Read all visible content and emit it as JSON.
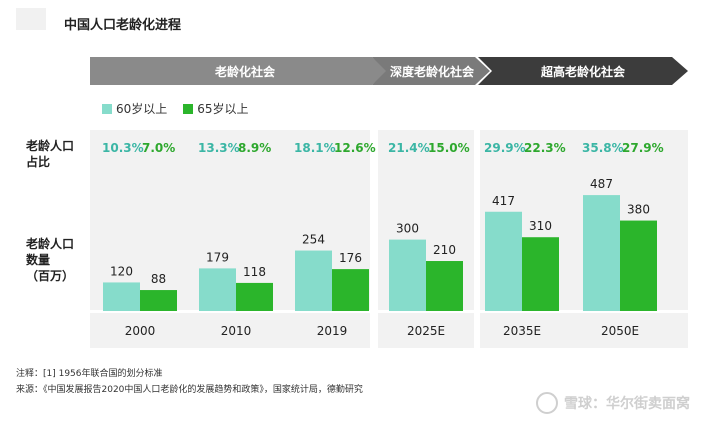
{
  "title": "中国人口老龄化进程",
  "phases": [
    "老龄化社会",
    "深度老龄化社会",
    "超高老龄化社会"
  ],
  "row_labels": {
    "share": "老龄人口\n占比",
    "count": "老龄人口\n数量\n（百万）"
  },
  "colors": {
    "aged60": "#86dccb",
    "aged65": "#2bb52b",
    "pct60": "#3bb6a5",
    "pct65": "#2ea82e"
  },
  "chart_data": {
    "type": "bar",
    "categories": [
      "2000",
      "2010",
      "2019",
      "2025E",
      "2035E",
      "2050E"
    ],
    "series": [
      {
        "name": "60岁以上",
        "values": [
          120,
          179,
          254,
          300,
          417,
          487
        ],
        "share": [
          "10.3%",
          "13.3%",
          "18.1%",
          "21.4%",
          "29.9%",
          "35.8%"
        ]
      },
      {
        "name": "65岁以上",
        "values": [
          88,
          118,
          176,
          210,
          310,
          380
        ],
        "share": [
          "7.0%",
          "8.9%",
          "12.6%",
          "15.0%",
          "22.3%",
          "27.9%"
        ]
      }
    ],
    "ylim": [
      0,
      520
    ],
    "legend": "top-left"
  },
  "footnotes": {
    "note": "注释：[1] 1956年联合国的划分标准",
    "source": "来源：《中国发展报告2020中国人口老龄化的发展趋势和政策》，国家统计局，德勤研究"
  },
  "watermark": "雪球：华尔街卖面窝"
}
